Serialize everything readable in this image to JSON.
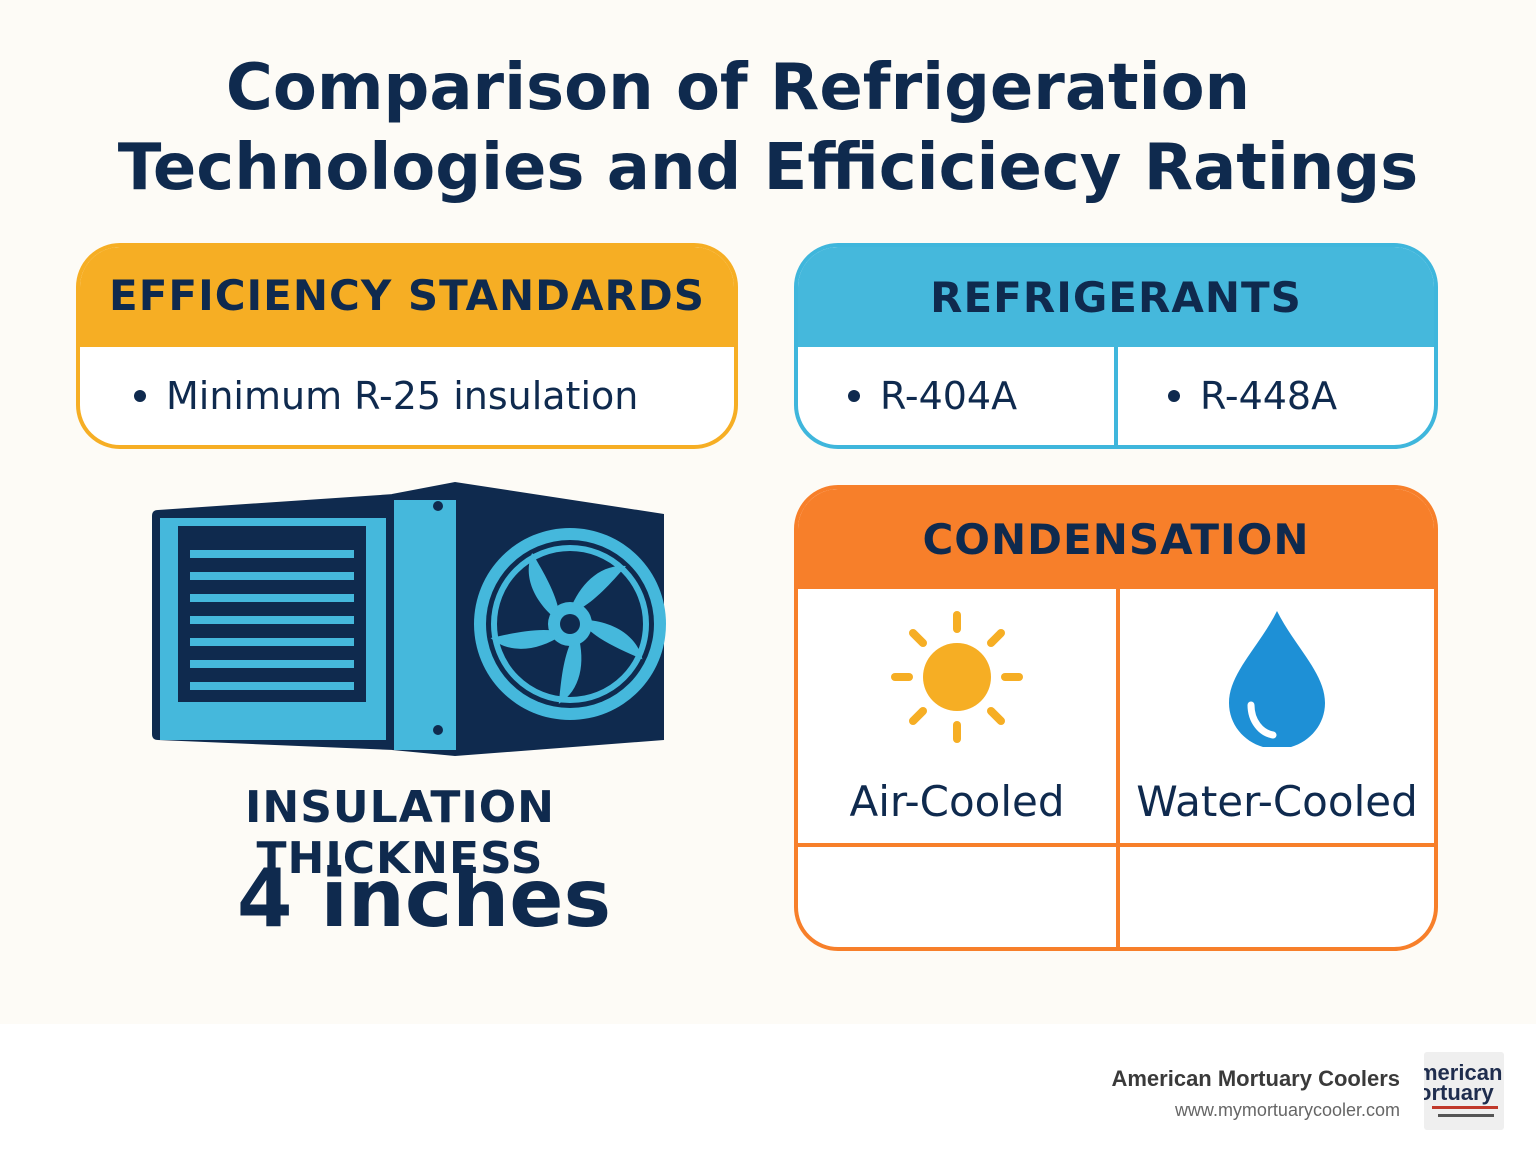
{
  "title": {
    "line1": "Comparison of Refrigeration",
    "line2": "Technologies and Efficiciecy Ratings"
  },
  "efficiency_standards": {
    "header": "EFFICIENCY STANDARDS",
    "items": [
      "Minimum R-25 insulation"
    ]
  },
  "refrigerants": {
    "header": "REFRIGERANTS",
    "items": [
      "R-404A",
      "R-448A"
    ]
  },
  "condensation": {
    "header": "CONDENSATION",
    "options": [
      {
        "label": "Air-Cooled",
        "icon": "sun-icon"
      },
      {
        "label": "Water-Cooled",
        "icon": "water-drop-icon"
      }
    ]
  },
  "insulation": {
    "label": "INSULATION THICKNESS",
    "value": "4 inches"
  },
  "footer": {
    "brand": "American Mortuary Coolers",
    "url": "www.mymortuarycooler.com",
    "logo_text": [
      "merican",
      "ortuary"
    ]
  },
  "colors": {
    "navy": "#0f2a4e",
    "yellow": "#f6ae24",
    "blue": "#45b8dc",
    "orange": "#f77f2a",
    "drop_blue": "#1e90d6"
  }
}
